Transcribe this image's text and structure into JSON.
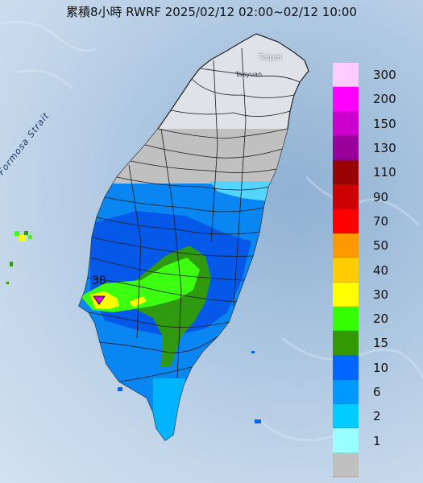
{
  "title": "累積8小時 RWRF 2025/02/12 02:00~02/12 10:00",
  "map_labels": {
    "strait": "Formosa Strait",
    "taipei": "Taipei",
    "taoyuan": "Taoyuan",
    "max_value": "38"
  },
  "legend": [
    {
      "label": "300",
      "color": "#ffccff"
    },
    {
      "label": "200",
      "color": "#ff00ff"
    },
    {
      "label": "150",
      "color": "#cc00cc"
    },
    {
      "label": "130",
      "color": "#990099"
    },
    {
      "label": "110",
      "color": "#990000"
    },
    {
      "label": "90",
      "color": "#cc0000"
    },
    {
      "label": "70",
      "color": "#ff0000"
    },
    {
      "label": "50",
      "color": "#ff9900"
    },
    {
      "label": "40",
      "color": "#ffcc00"
    },
    {
      "label": "30",
      "color": "#ffff00"
    },
    {
      "label": "20",
      "color": "#33ff00"
    },
    {
      "label": "15",
      "color": "#339900"
    },
    {
      "label": "10",
      "color": "#0066ff"
    },
    {
      "label": "6",
      "color": "#0099ff"
    },
    {
      "label": "2",
      "color": "#00ccff"
    },
    {
      "label": "1",
      "color": "#99ffff"
    },
    {
      "label": "",
      "color": "#c0c0c0"
    }
  ]
}
